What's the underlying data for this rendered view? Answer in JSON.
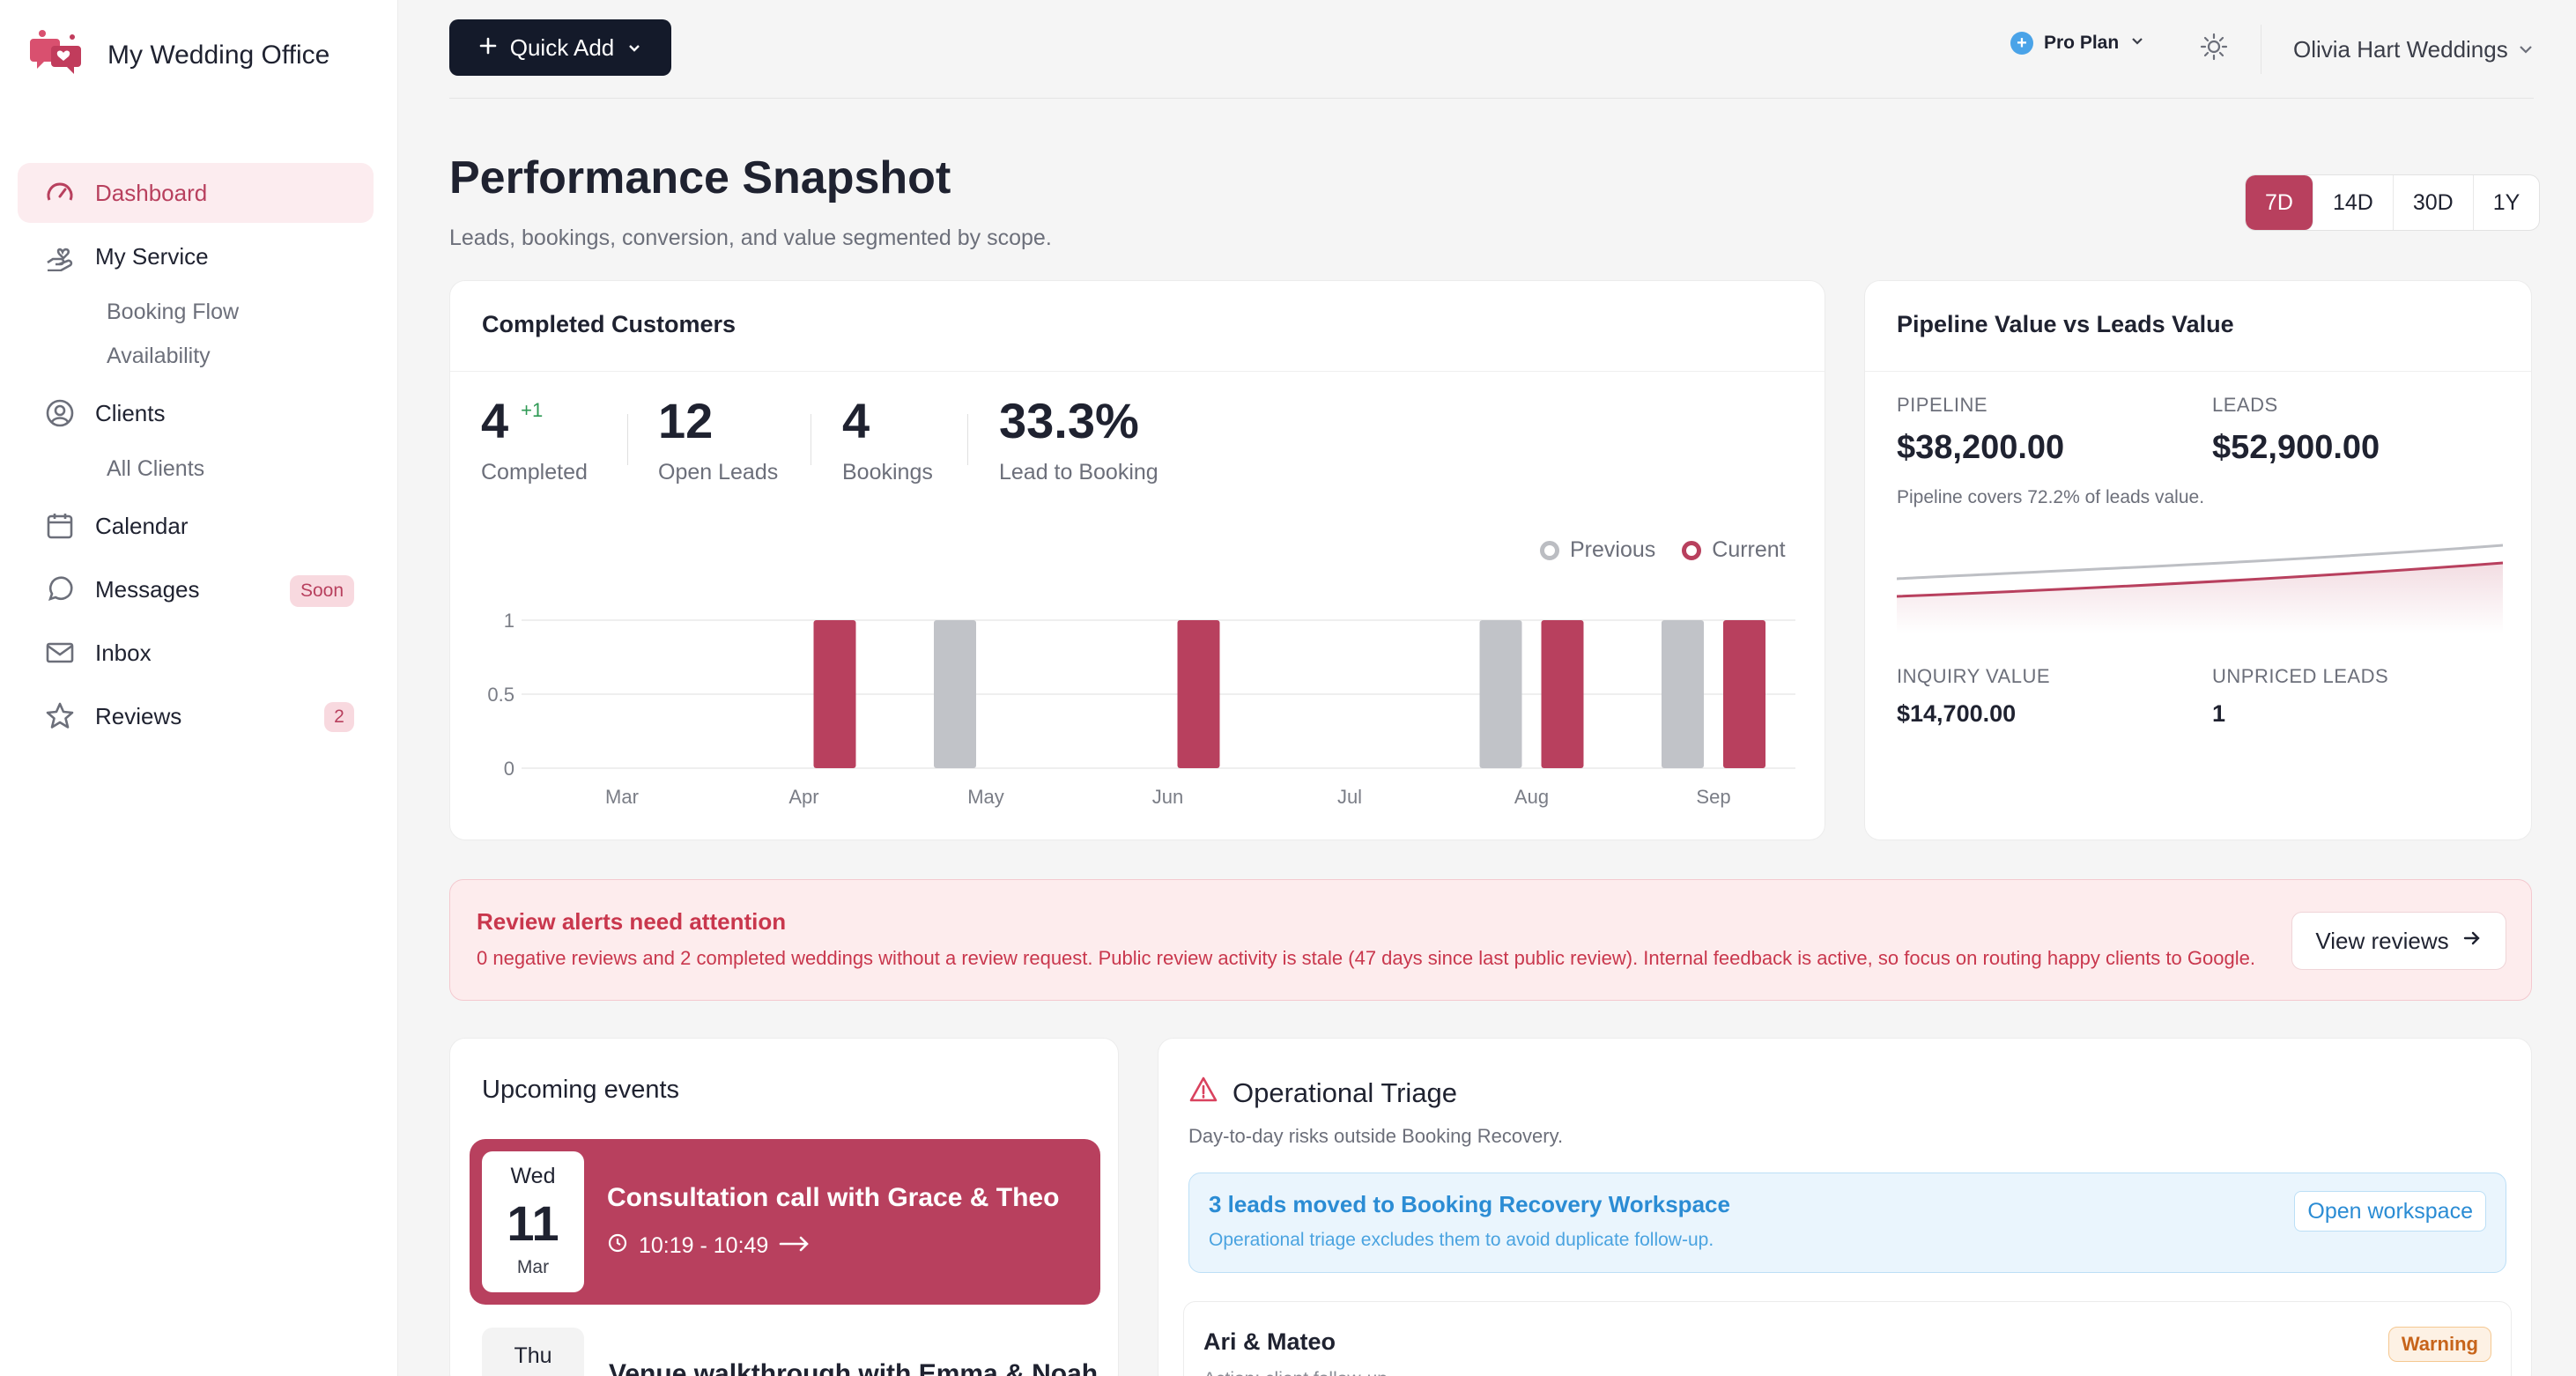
{
  "app": {
    "name": "My Wedding Office"
  },
  "sidebar": {
    "items": [
      {
        "label": "Dashboard"
      },
      {
        "label": "My Service",
        "subitems": [
          "Booking Flow",
          "Availability"
        ]
      },
      {
        "label": "Clients",
        "subitems": [
          "All Clients"
        ]
      },
      {
        "label": "Calendar"
      },
      {
        "label": "Messages",
        "badge": "Soon"
      },
      {
        "label": "Inbox"
      },
      {
        "label": "Reviews",
        "badge": "2"
      }
    ]
  },
  "topbar": {
    "quick_add": "Quick Add",
    "plan": "Pro Plan",
    "user": "Olivia Hart Weddings"
  },
  "header": {
    "title": "Performance Snapshot",
    "subtitle": "Leads, bookings, conversion, and value segmented by scope.",
    "ranges": [
      "7D",
      "14D",
      "30D",
      "1Y"
    ],
    "active_range": "7D"
  },
  "completed_customers": {
    "title": "Completed Customers",
    "stats": [
      {
        "value": "4",
        "delta": "+1",
        "label": "Completed"
      },
      {
        "value": "12",
        "label": "Open Leads"
      },
      {
        "value": "4",
        "label": "Bookings"
      },
      {
        "value": "33.3%",
        "label": "Lead to Booking"
      }
    ],
    "legend": {
      "previous": "Previous",
      "current": "Current"
    }
  },
  "chart_data": {
    "type": "bar",
    "categories": [
      "Mar",
      "Apr",
      "May",
      "Jun",
      "Jul",
      "Aug",
      "Sep"
    ],
    "y_ticks": [
      "1",
      "0.5",
      "0"
    ],
    "ylim": [
      0,
      1
    ],
    "series": [
      {
        "name": "Previous",
        "values": [
          0,
          0,
          1,
          0,
          0,
          1,
          1
        ],
        "color": "#c1c3c8"
      },
      {
        "name": "Current",
        "values": [
          0,
          1,
          0,
          1,
          0,
          1,
          1
        ],
        "color": "#b8405e"
      }
    ],
    "legend": "top-right",
    "grid": true
  },
  "pipeline": {
    "title": "Pipeline Value vs Leads Value",
    "pipeline_label": "PIPELINE",
    "pipeline_value": "$38,200.00",
    "leads_label": "LEADS",
    "leads_value": "$52,900.00",
    "note": "Pipeline covers 72.2% of leads value.",
    "inquiry_label": "INQUIRY VALUE",
    "inquiry_value": "$14,700.00",
    "unpriced_label": "UNPRICED LEADS",
    "unpriced_value": "1"
  },
  "alert": {
    "title": "Review alerts need attention",
    "text": "0 negative reviews and 2 completed weddings without a review request. Public review activity is stale (47 days since last public review). Internal feedback is active, so focus on routing happy clients to Google.",
    "button": "View reviews"
  },
  "upcoming": {
    "title": "Upcoming events",
    "events": [
      {
        "dow": "Wed",
        "day": "11",
        "month": "Mar",
        "title": "Consultation call with Grace & Theo",
        "time": "10:19 - 10:49"
      },
      {
        "dow": "Thu",
        "title": "Venue walkthrough with Emma & Noah"
      }
    ]
  },
  "triage": {
    "title": "Operational Triage",
    "subtitle": "Day-to-day risks outside Booking Recovery.",
    "info_title": "3 leads moved to Booking Recovery Workspace",
    "info_text": "Operational triage excludes them to avoid duplicate follow-up.",
    "info_button": "Open workspace",
    "row_name": "Ari & Mateo",
    "row_sub": "Action: client follow-up",
    "row_badge": "Warning"
  }
}
